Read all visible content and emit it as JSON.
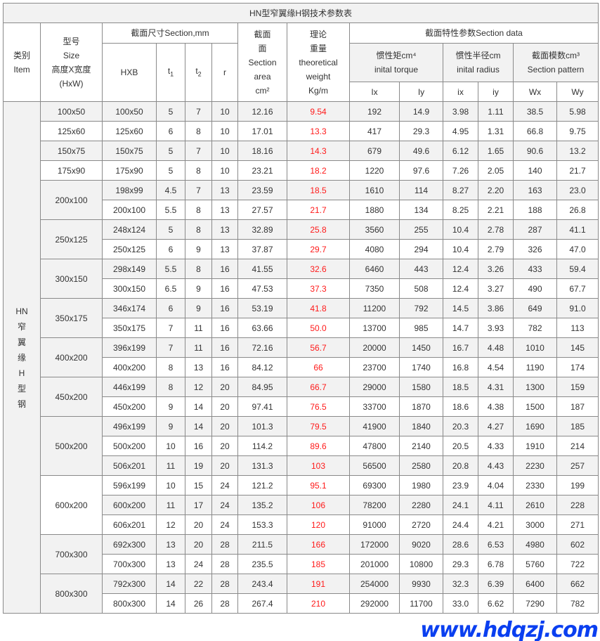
{
  "title": "HN型窄翼缘H钢技术参数表",
  "header": {
    "item": [
      "类别",
      "Item"
    ],
    "size": [
      "型号",
      "Size",
      "高度X宽度",
      "(HxW)"
    ],
    "section_mm": "截面尺寸Section,mm",
    "hxb": "HXB",
    "t1": "t",
    "t1_sub": "1",
    "t2": "t",
    "t2_sub": "2",
    "r": "r",
    "area": [
      "截面",
      "面",
      "Section",
      "area",
      "cm²"
    ],
    "weight": [
      "理论",
      "重量",
      "theoretical",
      "weight",
      "Kg/m"
    ],
    "section_data": "截面特性参数Section data",
    "inertia": [
      "惯性矩cm⁴",
      "inital torque"
    ],
    "radius": [
      "惯性半径cm",
      "inital radius"
    ],
    "modulus": [
      "截面模数cm³",
      "Section pattern"
    ],
    "cols": [
      "Ix",
      "Iy",
      "ix",
      "iy",
      "Wx",
      "Wy"
    ]
  },
  "item_label": "HN 窄 翼 缘 H 型 钢",
  "groups": [
    {
      "size": "100x50",
      "rows": [
        [
          "100x50",
          "5",
          "7",
          "10",
          "12.16",
          "9.54",
          "192",
          "14.9",
          "3.98",
          "1.11",
          "38.5",
          "5.98"
        ]
      ]
    },
    {
      "size": "125x60",
      "rows": [
        [
          "125x60",
          "6",
          "8",
          "10",
          "17.01",
          "13.3",
          "417",
          "29.3",
          "4.95",
          "1.31",
          "66.8",
          "9.75"
        ]
      ]
    },
    {
      "size": "150x75",
      "rows": [
        [
          "150x75",
          "5",
          "7",
          "10",
          "18.16",
          "14.3",
          "679",
          "49.6",
          "6.12",
          "1.65",
          "90.6",
          "13.2"
        ]
      ]
    },
    {
      "size": "175x90",
      "rows": [
        [
          "175x90",
          "5",
          "8",
          "10",
          "23.21",
          "18.2",
          "1220",
          "97.6",
          "7.26",
          "2.05",
          "140",
          "21.7"
        ]
      ]
    },
    {
      "size": "200x100",
      "rows": [
        [
          "198x99",
          "4.5",
          "7",
          "13",
          "23.59",
          "18.5",
          "1610",
          "114",
          "8.27",
          "2.20",
          "163",
          "23.0"
        ],
        [
          "200x100",
          "5.5",
          "8",
          "13",
          "27.57",
          "21.7",
          "1880",
          "134",
          "8.25",
          "2.21",
          "188",
          "26.8"
        ]
      ]
    },
    {
      "size": "250x125",
      "rows": [
        [
          "248x124",
          "5",
          "8",
          "13",
          "32.89",
          "25.8",
          "3560",
          "255",
          "10.4",
          "2.78",
          "287",
          "41.1"
        ],
        [
          "250x125",
          "6",
          "9",
          "13",
          "37.87",
          "29.7",
          "4080",
          "294",
          "10.4",
          "2.79",
          "326",
          "47.0"
        ]
      ]
    },
    {
      "size": "300x150",
      "rows": [
        [
          "298x149",
          "5.5",
          "8",
          "16",
          "41.55",
          "32.6",
          "6460",
          "443",
          "12.4",
          "3.26",
          "433",
          "59.4"
        ],
        [
          "300x150",
          "6.5",
          "9",
          "16",
          "47.53",
          "37.3",
          "7350",
          "508",
          "12.4",
          "3.27",
          "490",
          "67.7"
        ]
      ]
    },
    {
      "size": "350x175",
      "rows": [
        [
          "346x174",
          "6",
          "9",
          "16",
          "53.19",
          "41.8",
          "11200",
          "792",
          "14.5",
          "3.86",
          "649",
          "91.0"
        ],
        [
          "350x175",
          "7",
          "11",
          "16",
          "63.66",
          "50.0",
          "13700",
          "985",
          "14.7",
          "3.93",
          "782",
          "113"
        ]
      ]
    },
    {
      "size": "400x200",
      "rows": [
        [
          "396x199",
          "7",
          "11",
          "16",
          "72.16",
          "56.7",
          "20000",
          "1450",
          "16.7",
          "4.48",
          "1010",
          "145"
        ],
        [
          "400x200",
          "8",
          "13",
          "16",
          "84.12",
          "66",
          "23700",
          "1740",
          "16.8",
          "4.54",
          "1190",
          "174"
        ]
      ]
    },
    {
      "size": "450x200",
      "rows": [
        [
          "446x199",
          "8",
          "12",
          "20",
          "84.95",
          "66.7",
          "29000",
          "1580",
          "18.5",
          "4.31",
          "1300",
          "159"
        ],
        [
          "450x200",
          "9",
          "14",
          "20",
          "97.41",
          "76.5",
          "33700",
          "1870",
          "18.6",
          "4.38",
          "1500",
          "187"
        ]
      ]
    },
    {
      "size": "500x200",
      "rows": [
        [
          "496x199",
          "9",
          "14",
          "20",
          "101.3",
          "79.5",
          "41900",
          "1840",
          "20.3",
          "4.27",
          "1690",
          "185"
        ],
        [
          "500x200",
          "10",
          "16",
          "20",
          "114.2",
          "89.6",
          "47800",
          "2140",
          "20.5",
          "4.33",
          "1910",
          "214"
        ],
        [
          "506x201",
          "11",
          "19",
          "20",
          "131.3",
          "103",
          "56500",
          "2580",
          "20.8",
          "4.43",
          "2230",
          "257"
        ]
      ]
    },
    {
      "size": "600x200",
      "rows": [
        [
          "596x199",
          "10",
          "15",
          "24",
          "121.2",
          "95.1",
          "69300",
          "1980",
          "23.9",
          "4.04",
          "2330",
          "199"
        ],
        [
          "600x200",
          "11",
          "17",
          "24",
          "135.2",
          "106",
          "78200",
          "2280",
          "24.1",
          "4.11",
          "2610",
          "228"
        ],
        [
          "606x201",
          "12",
          "20",
          "24",
          "153.3",
          "120",
          "91000",
          "2720",
          "24.4",
          "4.21",
          "3000",
          "271"
        ]
      ]
    },
    {
      "size": "700x300",
      "rows": [
        [
          "692x300",
          "13",
          "20",
          "28",
          "211.5",
          "166",
          "172000",
          "9020",
          "28.6",
          "6.53",
          "4980",
          "602"
        ],
        [
          "700x300",
          "13",
          "24",
          "28",
          "235.5",
          "185",
          "201000",
          "10800",
          "29.3",
          "6.78",
          "5760",
          "722"
        ]
      ]
    },
    {
      "size": "800x300",
      "rows": [
        [
          "792x300",
          "14",
          "22",
          "28",
          "243.4",
          "191",
          "254000",
          "9930",
          "32.3",
          "6.39",
          "6400",
          "662"
        ],
        [
          "800x300",
          "14",
          "26",
          "28",
          "267.4",
          "210",
          "292000",
          "11700",
          "33.0",
          "6.62",
          "7290",
          "782"
        ]
      ]
    }
  ],
  "watermark": "www.hdqzj.com",
  "colors": {
    "weight": "#ff1a1a",
    "stripe": "#f2f2f2",
    "border": "#8a8a8a",
    "watermark": "#0a3ff0"
  }
}
